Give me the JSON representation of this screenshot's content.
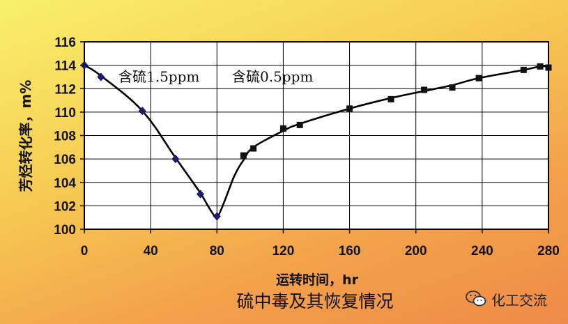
{
  "chart_data": {
    "type": "scatter",
    "title": "硫中毒及其恢复情况",
    "xlabel": "运转时间，hr",
    "ylabel": "芳烃转化率，m%",
    "xlim": [
      0,
      280
    ],
    "ylim": [
      100,
      116
    ],
    "xticks": [
      "0",
      "40",
      "80",
      "120",
      "160",
      "200",
      "240",
      "280"
    ],
    "yticks": [
      "100",
      "102",
      "104",
      "106",
      "108",
      "110",
      "112",
      "114",
      "116"
    ],
    "grid": true,
    "annotations": [
      "含硫1.5ppm",
      "含硫0.5ppm"
    ],
    "series": [
      {
        "marker": "diamond",
        "color": "#1a1a8c",
        "x": [
          0,
          10,
          35,
          55,
          70,
          80
        ],
        "y": [
          114.0,
          113.0,
          110.1,
          106.0,
          103.0,
          101.1
        ]
      },
      {
        "marker": "square",
        "color": "#111111",
        "x": [
          96,
          102,
          120,
          130,
          160,
          185,
          205,
          222,
          238,
          265,
          275,
          280
        ],
        "y": [
          106.3,
          106.9,
          108.6,
          108.9,
          110.3,
          111.1,
          111.9,
          112.1,
          112.9,
          113.6,
          113.9,
          113.8
        ]
      }
    ],
    "fit_curve": {
      "x": [
        0,
        10,
        35,
        55,
        70,
        80,
        90,
        96,
        102,
        120,
        130,
        160,
        185,
        205,
        222,
        238,
        265,
        275,
        280
      ],
      "y": [
        114.0,
        113.1,
        110.1,
        106.1,
        103.1,
        101.0,
        104.4,
        105.9,
        107.0,
        108.4,
        109.0,
        110.3,
        111.2,
        111.8,
        112.3,
        112.9,
        113.6,
        113.9,
        113.9
      ]
    }
  },
  "watermark": {
    "text": "化工交流",
    "icon": "wechat-icon"
  }
}
